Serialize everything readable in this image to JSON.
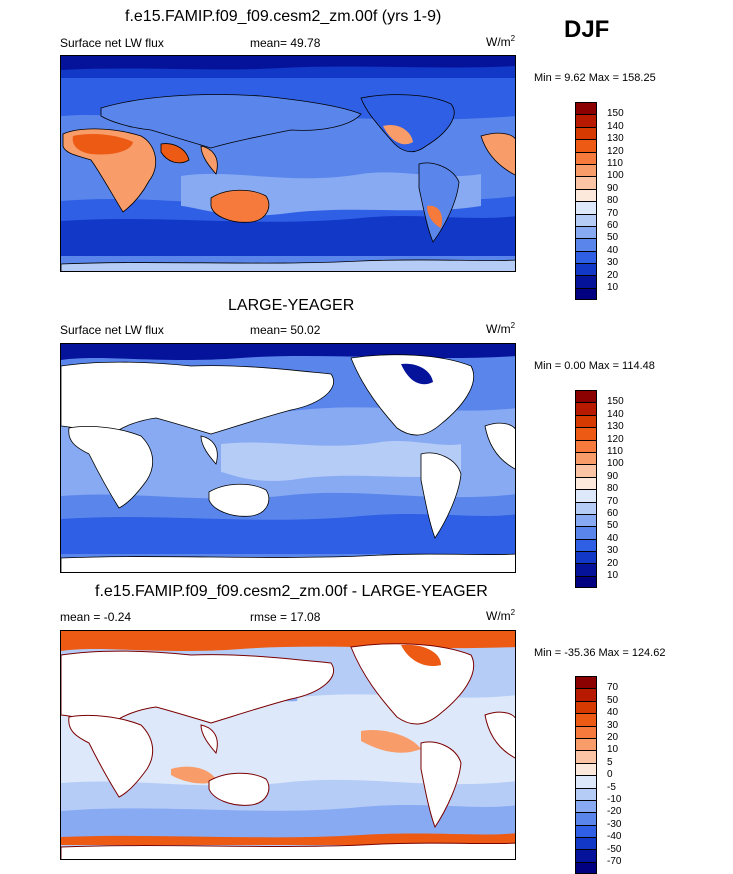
{
  "season": "DJF",
  "panels": [
    {
      "title": "f.e15.FAMIP.f09_f09.cesm2_zm.00f (yrs 1-9)",
      "left_label": "Surface net LW flux",
      "center_label": "mean=  49.78",
      "units": "W/m",
      "units_sup": "2",
      "minmax": "Min =   9.62 Max = 158.25"
    },
    {
      "title": "LARGE-YEAGER",
      "left_label": "Surface net LW flux",
      "center_label": "mean=  50.02",
      "units": "W/m",
      "units_sup": "2",
      "minmax": "Min =   0.00 Max = 114.48"
    },
    {
      "title": "f.e15.FAMIP.f09_f09.cesm2_zm.00f - LARGE-YEAGER",
      "left_label": "mean =  -0.24",
      "center_label": "rmse =  17.08",
      "units": "W/m",
      "units_sup": "2",
      "minmax": "Min = -35.36 Max = 124.62"
    }
  ],
  "colorbar_flux": {
    "levels": [
      "150",
      "140",
      "130",
      "120",
      "110",
      "100",
      "90",
      "80",
      "70",
      "60",
      "50",
      "40",
      "30",
      "20",
      "10"
    ],
    "colors": [
      "#8b0000",
      "#b81a00",
      "#d73a00",
      "#ec5a14",
      "#f57a3c",
      "#f89c6a",
      "#fbc4a4",
      "#fde9dc",
      "#dde9fb",
      "#b5ccf7",
      "#88aaf2",
      "#5a86ec",
      "#2f5fe4",
      "#1238c8",
      "#05129a",
      "#000080"
    ]
  },
  "colorbar_diff": {
    "levels": [
      "70",
      "50",
      "40",
      "30",
      "20",
      "10",
      "5",
      "0",
      "-5",
      "-10",
      "-20",
      "-30",
      "-40",
      "-50",
      "-70"
    ],
    "colors": [
      "#8b0000",
      "#b81a00",
      "#d73a00",
      "#ec5a14",
      "#f57a3c",
      "#f89c6a",
      "#fbc4a4",
      "#fde9dc",
      "#dde9fb",
      "#b5ccf7",
      "#88aaf2",
      "#5a86ec",
      "#2f5fe4",
      "#1238c8",
      "#05129a",
      "#000080"
    ]
  }
}
